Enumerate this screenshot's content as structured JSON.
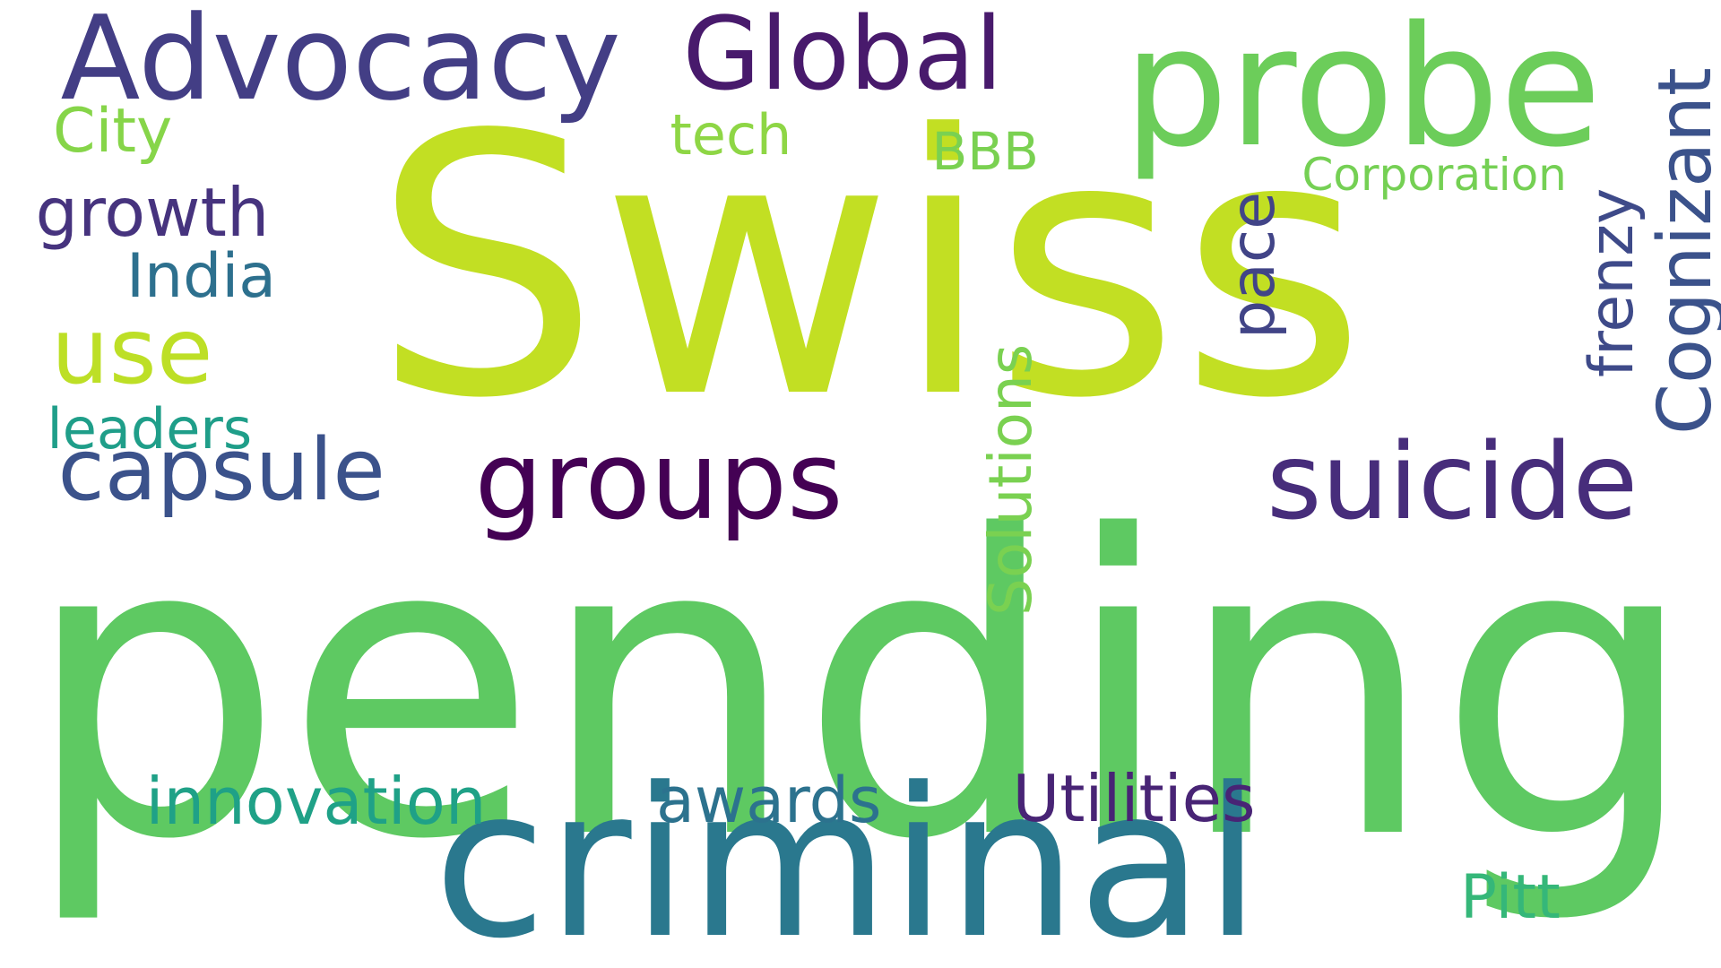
{
  "word_cloud": {
    "background": "#ffffff",
    "words": [
      {
        "id": "swiss",
        "text": "Swiss",
        "color": "#c2df23",
        "vertical": false
      },
      {
        "id": "pending",
        "text": "pending",
        "color": "#5ec962",
        "vertical": false
      },
      {
        "id": "criminal",
        "text": "criminal",
        "color": "#2a788e",
        "vertical": false
      },
      {
        "id": "probe",
        "text": "probe",
        "color": "#6ccd5a",
        "vertical": false
      },
      {
        "id": "advocacy",
        "text": "Advocacy",
        "color": "#433e85",
        "vertical": false
      },
      {
        "id": "global",
        "text": "Global",
        "color": "#481a6c",
        "vertical": false
      },
      {
        "id": "groups",
        "text": "groups",
        "color": "#440154",
        "vertical": false
      },
      {
        "id": "suicide",
        "text": "suicide",
        "color": "#472d7b",
        "vertical": false
      },
      {
        "id": "capsule",
        "text": "capsule",
        "color": "#3b528b",
        "vertical": false
      },
      {
        "id": "use",
        "text": "use",
        "color": "#bddf26",
        "vertical": false
      },
      {
        "id": "utilities",
        "text": "Utilities",
        "color": "#482475",
        "vertical": false
      },
      {
        "id": "innovation",
        "text": "innovation",
        "color": "#1fa187",
        "vertical": false
      },
      {
        "id": "awards",
        "text": "awards",
        "color": "#2c728e",
        "vertical": false
      },
      {
        "id": "growth",
        "text": "growth",
        "color": "#46337e",
        "vertical": false
      },
      {
        "id": "india",
        "text": "India",
        "color": "#2d708e",
        "vertical": false
      },
      {
        "id": "leaders",
        "text": "leaders",
        "color": "#1f9e89",
        "vertical": false
      },
      {
        "id": "city",
        "text": "City",
        "color": "#86d549",
        "vertical": false
      },
      {
        "id": "tech",
        "text": "tech",
        "color": "#8ed645",
        "vertical": false
      },
      {
        "id": "bbb",
        "text": "BBB",
        "color": "#7ad151",
        "vertical": false
      },
      {
        "id": "corporation",
        "text": "Corporation",
        "color": "#75d054",
        "vertical": false
      },
      {
        "id": "pitt",
        "text": "Pitt",
        "color": "#35b779",
        "vertical": false
      },
      {
        "id": "solutions",
        "text": "Solutions",
        "color": "#7ad151",
        "vertical": true
      },
      {
        "id": "pace",
        "text": "pace",
        "color": "#414487",
        "vertical": true
      },
      {
        "id": "frenzy",
        "text": "frenzy",
        "color": "#3e4a89",
        "vertical": true
      },
      {
        "id": "cognizant",
        "text": "Cognizant",
        "color": "#3b528b",
        "vertical": true
      }
    ]
  }
}
